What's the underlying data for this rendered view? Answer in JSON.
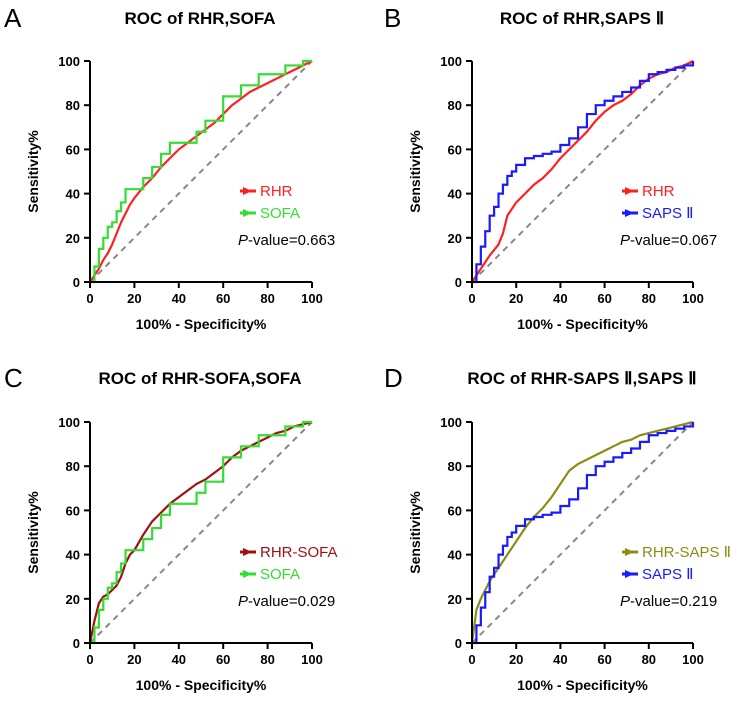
{
  "chart_data": [
    {
      "type": "line",
      "panel": "A",
      "title": "ROC of RHR,SOFA",
      "xlabel": "100% - Specificity%",
      "ylabel": "Sensitivity%",
      "xlim": [
        0,
        100
      ],
      "ylim": [
        0,
        100
      ],
      "xticks": [
        0,
        20,
        40,
        60,
        80,
        100
      ],
      "yticks": [
        0,
        20,
        40,
        60,
        80,
        100
      ],
      "reference_line": "diagonal",
      "pvalue_prefix": "P",
      "pvalue_text": "-value=0.663",
      "series": [
        {
          "name": "RHR",
          "color": "#ff2020",
          "step": false,
          "x": [
            0,
            2,
            4,
            6,
            8,
            10,
            12,
            14,
            16,
            18,
            20,
            24,
            28,
            32,
            36,
            40,
            44,
            48,
            52,
            56,
            60,
            64,
            68,
            72,
            76,
            80,
            84,
            88,
            92,
            96,
            100
          ],
          "y": [
            0,
            3,
            6,
            10,
            13,
            17,
            22,
            27,
            31,
            35,
            38,
            43,
            47,
            52,
            56,
            60,
            63,
            66,
            69,
            72,
            76,
            80,
            83,
            86,
            88,
            90,
            92,
            94,
            96,
            98,
            100
          ]
        },
        {
          "name": "SOFA",
          "color": "#33dd33",
          "step": true,
          "x": [
            0,
            2,
            4,
            6,
            8,
            10,
            12,
            14,
            16,
            18,
            20,
            24,
            28,
            32,
            36,
            40,
            44,
            48,
            52,
            56,
            60,
            64,
            68,
            72,
            76,
            80,
            84,
            88,
            92,
            96,
            100
          ],
          "y": [
            0,
            7,
            15,
            20,
            25,
            27,
            32,
            36,
            42,
            42,
            42,
            47,
            52,
            58,
            63,
            63,
            63,
            68,
            73,
            73,
            84,
            84,
            89,
            89,
            94,
            94,
            94,
            98,
            98,
            100,
            100
          ]
        }
      ]
    },
    {
      "type": "line",
      "panel": "B",
      "title": "ROC of RHR,SAPS Ⅱ",
      "xlabel": "100% - Specificity%",
      "ylabel": "Sensitivity%",
      "xlim": [
        0,
        100
      ],
      "ylim": [
        0,
        100
      ],
      "xticks": [
        0,
        20,
        40,
        60,
        80,
        100
      ],
      "yticks": [
        0,
        20,
        40,
        60,
        80,
        100
      ],
      "reference_line": "diagonal",
      "pvalue_prefix": "P",
      "pvalue_text": "-value=0.067",
      "series": [
        {
          "name": "RHR",
          "color": "#ff2020",
          "step": false,
          "x": [
            0,
            4,
            8,
            12,
            14,
            16,
            20,
            24,
            28,
            32,
            36,
            40,
            44,
            48,
            52,
            56,
            60,
            64,
            68,
            72,
            76,
            80,
            84,
            88,
            92,
            96,
            100
          ],
          "y": [
            0,
            6,
            12,
            17,
            22,
            30,
            36,
            40,
            44,
            47,
            51,
            56,
            60,
            64,
            68,
            73,
            77,
            80,
            82,
            85,
            89,
            92,
            94,
            95,
            97,
            98,
            100
          ]
        },
        {
          "name": "SAPS Ⅱ",
          "color": "#1a1aff",
          "step": true,
          "x": [
            0,
            2,
            4,
            6,
            8,
            10,
            12,
            14,
            16,
            18,
            20,
            24,
            28,
            32,
            36,
            40,
            44,
            48,
            52,
            56,
            60,
            64,
            68,
            72,
            76,
            80,
            84,
            88,
            92,
            96,
            100
          ],
          "y": [
            0,
            8,
            16,
            23,
            30,
            34,
            40,
            44,
            48,
            50,
            53,
            56,
            57,
            58,
            59,
            62,
            65,
            70,
            76,
            80,
            82,
            84,
            86,
            88,
            91,
            94,
            95,
            96,
            97,
            98,
            100
          ]
        }
      ]
    },
    {
      "type": "line",
      "panel": "C",
      "title": "ROC of RHR-SOFA,SOFA",
      "xlabel": "100% - Specificity%",
      "ylabel": "Sensitivity%",
      "xlim": [
        0,
        100
      ],
      "ylim": [
        0,
        100
      ],
      "xticks": [
        0,
        20,
        40,
        60,
        80,
        100
      ],
      "yticks": [
        0,
        20,
        40,
        60,
        80,
        100
      ],
      "reference_line": "diagonal",
      "pvalue_prefix": "P",
      "pvalue_text": "-value=0.029",
      "series": [
        {
          "name": "RHR-SOFA",
          "color": "#a01010",
          "step": false,
          "x": [
            0,
            2,
            4,
            6,
            8,
            10,
            12,
            14,
            16,
            18,
            20,
            24,
            28,
            32,
            36,
            40,
            44,
            48,
            52,
            56,
            60,
            64,
            68,
            72,
            76,
            80,
            84,
            88,
            92,
            96,
            100
          ],
          "y": [
            0,
            10,
            18,
            21,
            22,
            24,
            26,
            30,
            36,
            40,
            42,
            49,
            55,
            59,
            63,
            66,
            69,
            72,
            74,
            77,
            80,
            84,
            87,
            89,
            91,
            93,
            95,
            96,
            98,
            99,
            100
          ]
        },
        {
          "name": "SOFA",
          "color": "#33dd33",
          "step": true,
          "x": [
            0,
            2,
            4,
            6,
            8,
            10,
            12,
            14,
            16,
            18,
            20,
            24,
            28,
            32,
            36,
            40,
            44,
            48,
            52,
            56,
            60,
            64,
            68,
            72,
            76,
            80,
            84,
            88,
            92,
            96,
            100
          ],
          "y": [
            0,
            7,
            15,
            20,
            25,
            27,
            32,
            36,
            42,
            42,
            42,
            47,
            52,
            58,
            63,
            63,
            63,
            68,
            73,
            73,
            84,
            84,
            89,
            89,
            94,
            94,
            94,
            98,
            98,
            100,
            100
          ]
        }
      ]
    },
    {
      "type": "line",
      "panel": "D",
      "title": "ROC of RHR-SAPS Ⅱ,SAPS Ⅱ",
      "xlabel": "100% - Specificity%",
      "ylabel": "Sensitivity%",
      "xlim": [
        0,
        100
      ],
      "ylim": [
        0,
        100
      ],
      "xticks": [
        0,
        20,
        40,
        60,
        80,
        100
      ],
      "yticks": [
        0,
        20,
        40,
        60,
        80,
        100
      ],
      "reference_line": "diagonal",
      "pvalue_prefix": "P",
      "pvalue_text": "-value=0.219",
      "series": [
        {
          "name": "RHR-SAPS Ⅱ",
          "color": "#8c8c14",
          "step": false,
          "x": [
            0,
            2,
            4,
            6,
            8,
            10,
            12,
            14,
            16,
            18,
            20,
            24,
            28,
            32,
            36,
            40,
            44,
            48,
            52,
            56,
            60,
            64,
            68,
            72,
            76,
            80,
            84,
            88,
            92,
            96,
            100
          ],
          "y": [
            0,
            15,
            20,
            24,
            28,
            31,
            34,
            37,
            40,
            43,
            46,
            52,
            57,
            61,
            66,
            72,
            78,
            81,
            83,
            85,
            87,
            89,
            91,
            92,
            94,
            95,
            96,
            97,
            98,
            99,
            100
          ]
        },
        {
          "name": "SAPS Ⅱ",
          "color": "#1a1aff",
          "step": true,
          "x": [
            0,
            2,
            4,
            6,
            8,
            10,
            12,
            14,
            16,
            18,
            20,
            24,
            28,
            32,
            36,
            40,
            44,
            48,
            52,
            56,
            60,
            64,
            68,
            72,
            76,
            80,
            84,
            88,
            92,
            96,
            100
          ],
          "y": [
            0,
            8,
            16,
            23,
            30,
            34,
            40,
            44,
            48,
            50,
            53,
            56,
            57,
            58,
            59,
            62,
            65,
            70,
            76,
            80,
            82,
            84,
            86,
            88,
            91,
            94,
            95,
            96,
            97,
            98,
            100
          ]
        }
      ]
    }
  ]
}
